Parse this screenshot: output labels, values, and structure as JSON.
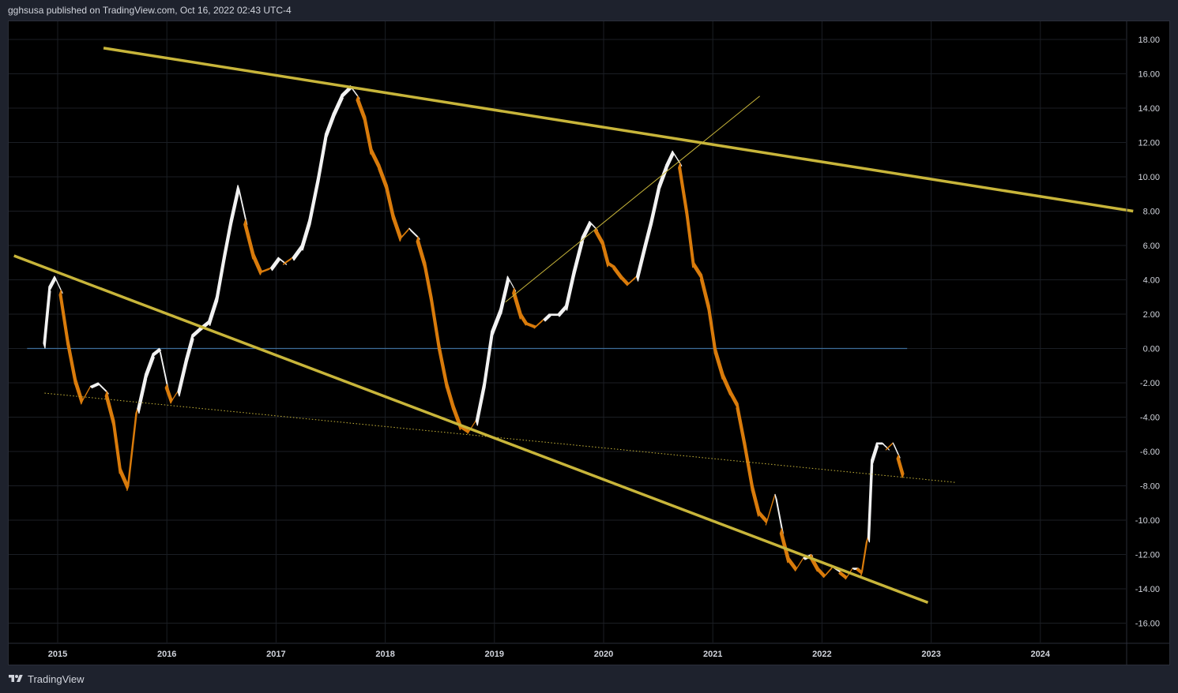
{
  "header": {
    "published_text": "gghsusa published on TradingView.com, Oct 16, 2022 02:43 UTC-4"
  },
  "footer": {
    "brand": "TradingView",
    "logo_icon": "tradingview-logo-icon"
  },
  "colors": {
    "background": "#000000",
    "rising": "#f2f2f2",
    "falling": "#d97b0b",
    "trendline": "#c8b53a",
    "zero_line": "#3d6e9a",
    "grid": "#1b1e24"
  },
  "chart_data": {
    "type": "area",
    "x_unit": "year",
    "xlim": [
      2014.6,
      2025.0
    ],
    "ylim": [
      -17.0,
      19.0
    ],
    "y_ticks": [
      "18.00",
      "16.00",
      "14.00",
      "12.00",
      "10.00",
      "8.00",
      "6.00",
      "4.00",
      "2.00",
      "0.00",
      "-2.00",
      "-4.00",
      "-6.00",
      "-8.00",
      "-10.00",
      "-12.00",
      "-14.00",
      "-16.00"
    ],
    "x_ticks": [
      "2015",
      "2016",
      "2017",
      "2018",
      "2019",
      "2020",
      "2021",
      "2022",
      "2023",
      "2024"
    ],
    "grid": true,
    "series": [
      {
        "x": [
          2014.87,
          2014.92,
          2014.97,
          2015.03,
          2015.1,
          2015.17,
          2015.23,
          2015.3,
          2015.37,
          2015.45,
          2015.52,
          2015.58,
          2015.65,
          2015.73,
          2015.8,
          2015.87,
          2015.93,
          2016.0,
          2016.05,
          2016.1,
          2016.17,
          2016.23,
          2016.3,
          2016.38,
          2016.45,
          2016.52,
          2016.58,
          2016.65,
          2016.72,
          2016.8,
          2016.87,
          2016.95,
          2017.02,
          2017.08,
          2017.15,
          2017.23,
          2017.3,
          2017.38,
          2017.45,
          2017.52,
          2017.6,
          2017.68,
          2017.75,
          2017.82,
          2017.88,
          2017.95,
          2018.02,
          2018.08,
          2018.15,
          2018.22,
          2018.3,
          2018.37,
          2018.43,
          2018.5,
          2018.57,
          2018.63,
          2018.7,
          2018.77,
          2018.83,
          2018.9,
          2018.97,
          2019.05,
          2019.12,
          2019.18,
          2019.25,
          2019.3,
          2019.38,
          2019.45,
          2019.5,
          2019.58,
          2019.65,
          2019.72,
          2019.8,
          2019.87,
          2019.93,
          2020.0,
          2020.05,
          2020.1,
          2020.17,
          2020.23,
          2020.3,
          2020.37,
          2020.43,
          2020.5,
          2020.57,
          2020.63,
          2020.7,
          2020.77,
          2020.83,
          2020.9,
          2020.97,
          2021.03,
          2021.1,
          2021.17,
          2021.23,
          2021.3,
          2021.37,
          2021.43,
          2021.5,
          2021.57,
          2021.63,
          2021.7,
          2021.77,
          2021.83,
          2021.9,
          2021.97,
          2022.03,
          2022.1,
          2022.17,
          2022.23,
          2022.28,
          2022.33,
          2022.37,
          2022.42,
          2022.45,
          2022.5,
          2022.55,
          2022.6,
          2022.65,
          2022.7,
          2022.75
        ],
        "y": [
          0.3,
          3.6,
          4.2,
          3.4,
          0.5,
          -1.8,
          -3.0,
          -2.2,
          -2.0,
          -2.5,
          -4.2,
          -7.0,
          -8.0,
          -3.5,
          -1.5,
          -0.3,
          0.0,
          -2.1,
          -3.0,
          -2.5,
          -0.6,
          0.8,
          1.2,
          1.6,
          3.0,
          5.5,
          7.5,
          9.5,
          7.5,
          5.5,
          4.5,
          4.7,
          5.3,
          5.0,
          5.3,
          6.0,
          7.5,
          10.0,
          12.5,
          13.7,
          14.8,
          15.3,
          14.7,
          13.5,
          11.6,
          10.7,
          9.5,
          7.8,
          6.5,
          7.0,
          6.5,
          5.0,
          3.0,
          0.2,
          -2.0,
          -3.3,
          -4.5,
          -4.8,
          -4.2,
          -2.0,
          1.0,
          2.3,
          4.2,
          3.5,
          2.0,
          1.5,
          1.3,
          1.7,
          2.0,
          2.0,
          2.5,
          4.5,
          6.5,
          7.4,
          7.0,
          6.2,
          5.0,
          4.8,
          4.2,
          3.8,
          4.2,
          6.0,
          7.5,
          9.5,
          10.7,
          11.5,
          10.8,
          8.0,
          5.0,
          4.3,
          2.5,
          0.0,
          -1.5,
          -2.5,
          -3.2,
          -5.5,
          -8.0,
          -9.5,
          -10.0,
          -8.5,
          -10.5,
          -12.2,
          -12.8,
          -12.2,
          -12.0,
          -12.8,
          -13.2,
          -12.7,
          -13.0,
          -13.3,
          -12.8,
          -12.8,
          -13.0,
          -11.0,
          -6.5,
          -5.5,
          -5.5,
          -5.8,
          -5.5,
          -6.2,
          -7.3
        ],
        "trend": [
          1,
          1,
          1,
          -1,
          -1,
          -1,
          -1,
          1,
          1,
          -1,
          -1,
          -1,
          -1,
          1,
          1,
          1,
          1,
          -1,
          -1,
          1,
          1,
          1,
          1,
          1,
          1,
          1,
          1,
          1,
          -1,
          -1,
          -1,
          1,
          1,
          -1,
          1,
          1,
          1,
          1,
          1,
          1,
          1,
          1,
          -1,
          -1,
          -1,
          -1,
          -1,
          -1,
          -1,
          1,
          -1,
          -1,
          -1,
          -1,
          -1,
          -1,
          -1,
          -1,
          1,
          1,
          1,
          1,
          1,
          -1,
          -1,
          -1,
          -1,
          1,
          1,
          1,
          1,
          1,
          1,
          1,
          -1,
          -1,
          -1,
          -1,
          -1,
          -1,
          1,
          1,
          1,
          1,
          1,
          1,
          -1,
          -1,
          -1,
          -1,
          -1,
          -1,
          -1,
          -1,
          -1,
          -1,
          -1,
          -1,
          -1,
          1,
          -1,
          -1,
          -1,
          1,
          -1,
          -1,
          -1,
          1,
          -1,
          -1,
          1,
          -1,
          -1,
          1,
          1,
          1,
          1,
          -1,
          1,
          -1,
          -1
        ]
      }
    ],
    "zero_line": {
      "y": 0.0,
      "x_range": [
        2014.72,
        2022.78
      ]
    },
    "trendlines": [
      {
        "style": "thick",
        "x1": 2015.42,
        "y1": 17.5,
        "x2": 2024.85,
        "y2": 8.0
      },
      {
        "style": "thick",
        "x1": 2014.6,
        "y1": 5.4,
        "x2": 2022.97,
        "y2": -14.8
      },
      {
        "style": "thin",
        "x1": 2019.1,
        "y1": 2.7,
        "x2": 2021.43,
        "y2": 14.7
      },
      {
        "style": "dotted",
        "x1": 2014.88,
        "y1": -2.6,
        "x2": 2023.22,
        "y2": -7.8
      }
    ]
  }
}
